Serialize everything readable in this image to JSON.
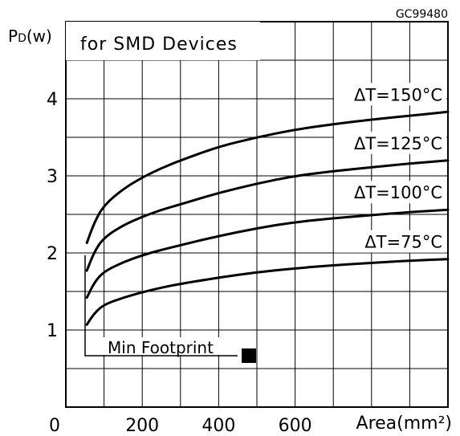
{
  "chart_data": {
    "type": "line",
    "figure_code": "GC99480",
    "title": "for SMD Devices",
    "ylabel_main": "P",
    "ylabel_sub": "D",
    "ylabel_unit": "(w)",
    "xlabel": "Area(mm²)",
    "origin_label": "0",
    "xlim": [
      0,
      1000
    ],
    "ylim": [
      0,
      5
    ],
    "x_ticks": [
      200,
      400,
      600
    ],
    "y_ticks": [
      1,
      2,
      3,
      4
    ],
    "grid": true,
    "annotation": {
      "text": "Min Footprint",
      "x": 55
    },
    "series": [
      {
        "name": "ΔT=150°C",
        "x": [
          55,
          75,
          100,
          150,
          200,
          250,
          300,
          400,
          500,
          600,
          700,
          800,
          900,
          1000
        ],
        "y": [
          2.13,
          2.4,
          2.62,
          2.83,
          2.98,
          3.1,
          3.2,
          3.38,
          3.5,
          3.6,
          3.67,
          3.73,
          3.78,
          3.83
        ]
      },
      {
        "name": "ΔT=125°C",
        "x": [
          55,
          75,
          100,
          150,
          200,
          250,
          300,
          400,
          500,
          600,
          700,
          800,
          900,
          1000
        ],
        "y": [
          1.77,
          2.02,
          2.2,
          2.36,
          2.47,
          2.56,
          2.63,
          2.78,
          2.9,
          3.0,
          3.06,
          3.11,
          3.16,
          3.2
        ]
      },
      {
        "name": "ΔT=100°C",
        "x": [
          55,
          75,
          100,
          150,
          200,
          250,
          300,
          400,
          500,
          600,
          700,
          800,
          900,
          1000
        ],
        "y": [
          1.42,
          1.62,
          1.76,
          1.88,
          1.97,
          2.04,
          2.1,
          2.22,
          2.32,
          2.4,
          2.45,
          2.49,
          2.53,
          2.56
        ]
      },
      {
        "name": "ΔT=75°C",
        "x": [
          55,
          75,
          100,
          150,
          200,
          250,
          300,
          400,
          500,
          600,
          700,
          800,
          900,
          1000
        ],
        "y": [
          1.07,
          1.22,
          1.33,
          1.42,
          1.49,
          1.55,
          1.6,
          1.68,
          1.75,
          1.8,
          1.84,
          1.87,
          1.9,
          1.92
        ]
      }
    ]
  }
}
